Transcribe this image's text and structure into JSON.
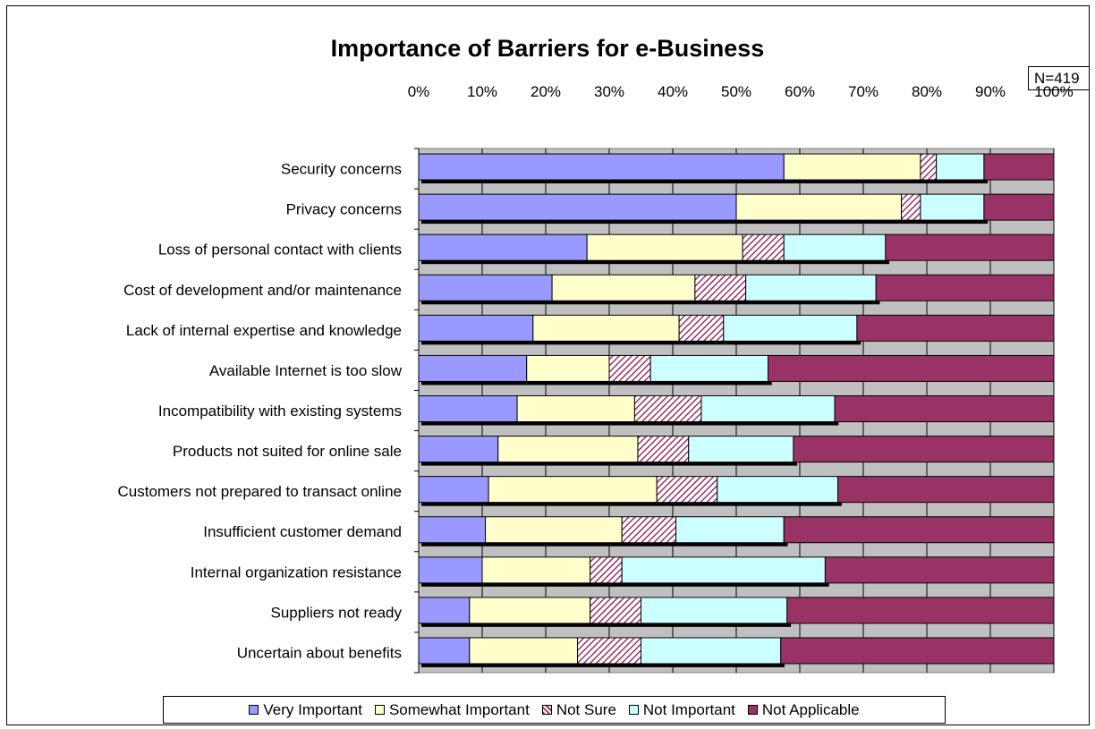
{
  "chart_data": {
    "type": "bar",
    "orientation": "horizontal",
    "stacked": "percent",
    "title": "Importance of Barriers for e-Business",
    "annotation": "N=419",
    "xlim": [
      0,
      100
    ],
    "x_ticks": [
      "0%",
      "10%",
      "20%",
      "30%",
      "40%",
      "50%",
      "60%",
      "70%",
      "80%",
      "90%",
      "100%"
    ],
    "grid": true,
    "legend_position": "bottom",
    "categories": [
      "Security concerns",
      "Privacy concerns",
      "Loss of personal contact with clients",
      "Cost of development and/or maintenance",
      "Lack of internal expertise and knowledge",
      "Available Internet is too slow ",
      "Incompatibility with existing systems",
      "Products not suited for online sale",
      "Customers not prepared to transact online",
      "Insufficient customer demand",
      "Internal organization resistance",
      "Suppliers not ready",
      "Uncertain about benefits"
    ],
    "series": [
      {
        "name": "Very Important",
        "color": "#9999ff",
        "pattern": "solid",
        "values": [
          57.5,
          50,
          26.5,
          21,
          18,
          17,
          15.5,
          12.5,
          11,
          10.5,
          10,
          8,
          8
        ]
      },
      {
        "name": "Somewhat Important",
        "color": "#ffffcc",
        "pattern": "solid",
        "values": [
          21.5,
          26,
          24.5,
          22.5,
          23,
          13,
          18.5,
          22,
          26.5,
          21.5,
          17,
          19,
          17
        ]
      },
      {
        "name": "Not Sure",
        "color": "#993366",
        "pattern": "hatch",
        "values": [
          2.5,
          3,
          6.5,
          8,
          7,
          6.5,
          10.5,
          8,
          9.5,
          8.5,
          5,
          8,
          10
        ]
      },
      {
        "name": "Not Important",
        "color": "#ccffff",
        "pattern": "solid",
        "values": [
          7.5,
          10,
          16,
          20.5,
          21,
          18.5,
          21,
          16.5,
          19,
          17,
          32,
          23,
          22
        ]
      },
      {
        "name": "Not Applicable",
        "color": "#993366",
        "pattern": "solid",
        "values": [
          11,
          11,
          26.5,
          28,
          31,
          45,
          34.5,
          41,
          34,
          42.5,
          36,
          42,
          43
        ]
      }
    ]
  }
}
